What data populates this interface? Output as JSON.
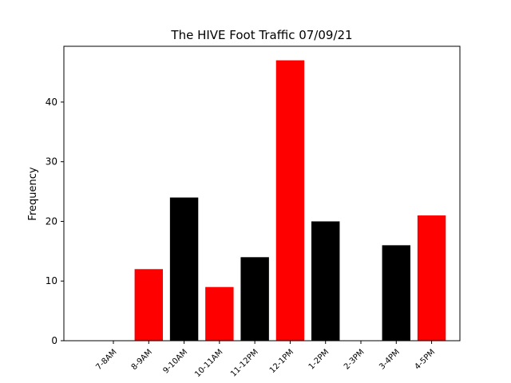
{
  "chart_data": {
    "type": "bar",
    "title": "The HIVE Foot Traffic 07/09/21",
    "xlabel": "",
    "ylabel": "Frequency",
    "categories": [
      "7-8AM",
      "8-9AM",
      "9-10AM",
      "10-11AM",
      "11-12PM",
      "12-1PM",
      "1-2PM",
      "2-3PM",
      "3-4PM",
      "4-5PM"
    ],
    "values": [
      0,
      12,
      24,
      9,
      14,
      47,
      20,
      0,
      16,
      21
    ],
    "bar_colors": [
      "#ff0000",
      "#ff0000",
      "#000000",
      "#ff0000",
      "#000000",
      "#ff0000",
      "#000000",
      "#ff0000",
      "#000000",
      "#ff0000"
    ],
    "yticks": [
      0,
      10,
      20,
      30,
      40
    ],
    "ylim": [
      0,
      49.35
    ],
    "grid": false,
    "legend": "none"
  }
}
